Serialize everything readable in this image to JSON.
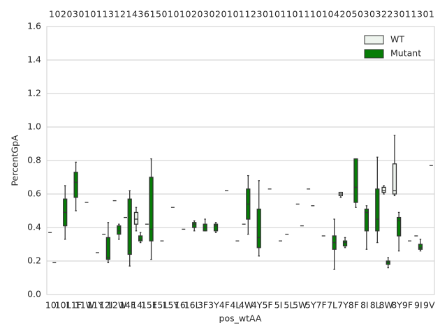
{
  "chart_data": {
    "type": "box",
    "x_label": "pos_wtAA",
    "y_label": "PercentGpA",
    "top_annotation": "1 0 2 0 3 0 1 0 1 1 3 1 2 1 4 3 6 1 5 0 1 0 1 0 2 0 3 0 2 0 1 0 1 1 2 3 0 1 0 1 1 0 1 1 1 0 1 0 4 2 0 5 0 3 0 3 2 2 3 0 1 1 3 0 1",
    "categories": [
      "10I",
      "10L",
      "11F",
      "11W",
      "11Y",
      "12I",
      "12W",
      "14F",
      "14I",
      "15F",
      "15L",
      "15Y",
      "16I",
      "16L",
      "3F",
      "3Y",
      "4F",
      "4L",
      "4W",
      "4Y",
      "5F",
      "5I",
      "5L",
      "5W",
      "5Y",
      "7F",
      "7L",
      "7Y",
      "8F",
      "8I",
      "8L",
      "8W",
      "8Y",
      "9F",
      "9I",
      "9V"
    ],
    "series": [
      {
        "name": "WT",
        "color": "#eef4ee",
        "boxes": [
          [
            0.37
          ],
          null,
          null,
          null,
          null,
          [
            0.36
          ],
          [
            0.56
          ],
          [
            0.46
          ],
          [
            0.38,
            0.42,
            0.45,
            0.49,
            0.52
          ],
          [
            0.42
          ],
          null,
          null,
          null,
          null,
          null,
          null,
          null,
          null,
          [
            0.42
          ],
          null,
          null,
          null,
          [
            0.36
          ],
          [
            0.54
          ],
          [
            0.63
          ],
          null,
          null,
          [
            0.58,
            0.59,
            0.6,
            0.61,
            0.61
          ],
          null,
          null,
          null,
          [
            0.6,
            0.61,
            0.62,
            0.64,
            0.65
          ],
          [
            0.59,
            0.6,
            0.62,
            0.78,
            0.95
          ],
          null,
          [
            0.35
          ],
          null
        ]
      },
      {
        "name": "Mutant",
        "color": "#067d06",
        "boxes": [
          [
            0.19
          ],
          [
            0.33,
            0.41,
            0.49,
            0.57,
            0.65
          ],
          [
            0.5,
            0.58,
            0.67,
            0.73,
            0.79
          ],
          [
            0.55
          ],
          [
            0.25
          ],
          [
            0.19,
            0.21,
            0.22,
            0.34,
            0.43
          ],
          [
            0.33,
            0.36,
            0.38,
            0.41,
            0.42
          ],
          [
            0.17,
            0.24,
            0.26,
            0.57,
            0.62
          ],
          [
            0.31,
            0.32,
            0.33,
            0.35,
            0.37
          ],
          [
            0.21,
            0.32,
            0.39,
            0.7,
            0.81
          ],
          [
            0.32
          ],
          [
            0.52
          ],
          [
            0.39
          ],
          [
            0.38,
            0.4,
            0.42,
            0.43,
            0.44
          ],
          [
            0.38,
            0.38,
            0.4,
            0.42,
            0.45
          ],
          [
            0.37,
            0.38,
            0.41,
            0.42,
            0.43
          ],
          [
            0.62
          ],
          [
            0.32
          ],
          [
            0.36,
            0.45,
            0.54,
            0.63,
            0.71
          ],
          [
            0.23,
            0.28,
            0.34,
            0.51,
            0.68
          ],
          [
            0.63
          ],
          [
            0.32
          ],
          null,
          [
            0.41
          ],
          [
            0.53
          ],
          [
            0.35
          ],
          [
            0.15,
            0.27,
            0.31,
            0.35,
            0.45
          ],
          [
            0.28,
            0.29,
            0.31,
            0.32,
            0.34
          ],
          [
            0.52,
            0.55,
            0.64,
            0.81,
            0.81
          ],
          [
            0.27,
            0.38,
            0.49,
            0.51,
            0.53
          ],
          [
            0.31,
            0.38,
            0.45,
            0.63,
            0.82
          ],
          [
            0.16,
            0.18,
            0.19,
            0.2,
            0.22
          ],
          [
            0.26,
            0.35,
            0.44,
            0.46,
            0.49
          ],
          [
            0.32
          ],
          [
            0.26,
            0.27,
            0.28,
            0.3,
            0.33
          ],
          [
            0.77
          ]
        ]
      }
    ],
    "ylim": [
      0,
      1.6
    ],
    "yticks": [
      {
        "value": 0,
        "label": "0.0"
      },
      {
        "value": 0.2,
        "label": "0.2"
      },
      {
        "value": 0.4,
        "label": "0.4"
      },
      {
        "value": 0.6,
        "label": "0.6"
      },
      {
        "value": 0.8,
        "label": "0.8"
      },
      {
        "value": 1.0,
        "label": "1.0"
      },
      {
        "value": 1.2,
        "label": "1.2"
      },
      {
        "value": 1.4,
        "label": "1.4"
      },
      {
        "value": 1.6,
        "label": "1.6"
      }
    ],
    "grid": true,
    "legend": "upper right"
  }
}
